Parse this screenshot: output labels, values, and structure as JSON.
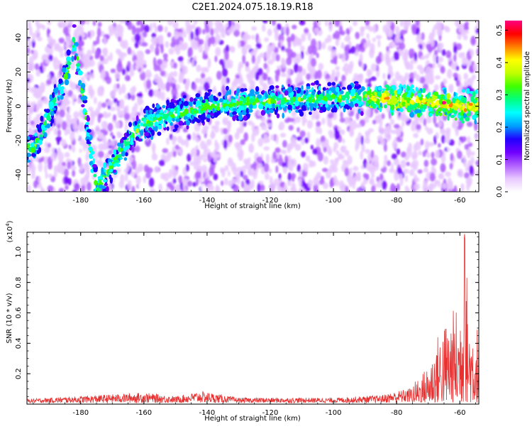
{
  "title": "C2E1.2024.075.18.19.R18",
  "colors": {
    "line": "#e83030",
    "axis": "#000000",
    "background": "#ffffff",
    "colormap": [
      "#ffffff",
      "#e8c8ff",
      "#b060ff",
      "#7000ff",
      "#2000ff",
      "#00a0ff",
      "#00ffff",
      "#00ff80",
      "#40ff00",
      "#c0ff00",
      "#ffff00",
      "#ff8000",
      "#ff0000",
      "#ff0080"
    ]
  },
  "chart_data": [
    {
      "type": "heatmap",
      "xlabel": "Height of straight line (km)",
      "ylabel": "Frequency (Hz)",
      "xlim": [
        -197,
        -54
      ],
      "ylim": [
        -50,
        50
      ],
      "x_ticks": [
        "-180",
        "-160",
        "-140",
        "-120",
        "-100",
        "-80",
        "-60"
      ],
      "y_ticks": [
        "-40",
        "-20",
        "0",
        "20",
        "40"
      ],
      "colorbar": {
        "label": "Normalized spectral amplitude",
        "range": [
          0.0,
          0.53
        ],
        "ticks": [
          "0.0",
          "0.1",
          "0.2",
          "0.3",
          "0.4",
          "0.5"
        ]
      },
      "ridge": [
        {
          "x": -195,
          "y": -25
        },
        {
          "x": -190,
          "y": -5
        },
        {
          "x": -185,
          "y": 15
        },
        {
          "x": -182,
          "y": 40
        },
        {
          "x": -175,
          "y": -48
        },
        {
          "x": -170,
          "y": -35
        },
        {
          "x": -165,
          "y": -20
        },
        {
          "x": -160,
          "y": -10
        },
        {
          "x": -150,
          "y": -5
        },
        {
          "x": -140,
          "y": 0
        },
        {
          "x": -120,
          "y": 3
        },
        {
          "x": -100,
          "y": 5
        },
        {
          "x": -85,
          "y": 5
        },
        {
          "x": -70,
          "y": 2
        },
        {
          "x": -60,
          "y": 0
        },
        {
          "x": -55,
          "y": 0
        }
      ],
      "peak": {
        "x": -65,
        "y": 2,
        "value": 0.53
      }
    },
    {
      "type": "line",
      "xlabel": "Height of straight line (km)",
      "ylabel": "SNR (10 * v/v)",
      "y_multiplier": "(x10",
      "y_multiplier_exp": "4",
      "y_multiplier_close": ")",
      "xlim": [
        -197,
        -54
      ],
      "ylim": [
        0,
        1.13
      ],
      "x_ticks": [
        "-180",
        "-160",
        "-140",
        "-120",
        "-100",
        "-80",
        "-60"
      ],
      "y_ticks": [
        "0.2",
        "0.4",
        "0.6",
        "0.8",
        "1.0"
      ],
      "envelope": [
        {
          "x": -197,
          "y": 0.03
        },
        {
          "x": -160,
          "y": 0.08
        },
        {
          "x": -150,
          "y": 0.05
        },
        {
          "x": -142,
          "y": 0.09
        },
        {
          "x": -130,
          "y": 0.04
        },
        {
          "x": -100,
          "y": 0.04
        },
        {
          "x": -85,
          "y": 0.06
        },
        {
          "x": -75,
          "y": 0.12
        },
        {
          "x": -70,
          "y": 0.25
        },
        {
          "x": -67,
          "y": 0.45
        },
        {
          "x": -63,
          "y": 0.6
        },
        {
          "x": -60,
          "y": 0.65
        },
        {
          "x": -58.5,
          "y": 1.12
        },
        {
          "x": -57,
          "y": 0.6
        },
        {
          "x": -55,
          "y": 0.55
        },
        {
          "x": -54,
          "y": 0.5
        }
      ]
    }
  ]
}
